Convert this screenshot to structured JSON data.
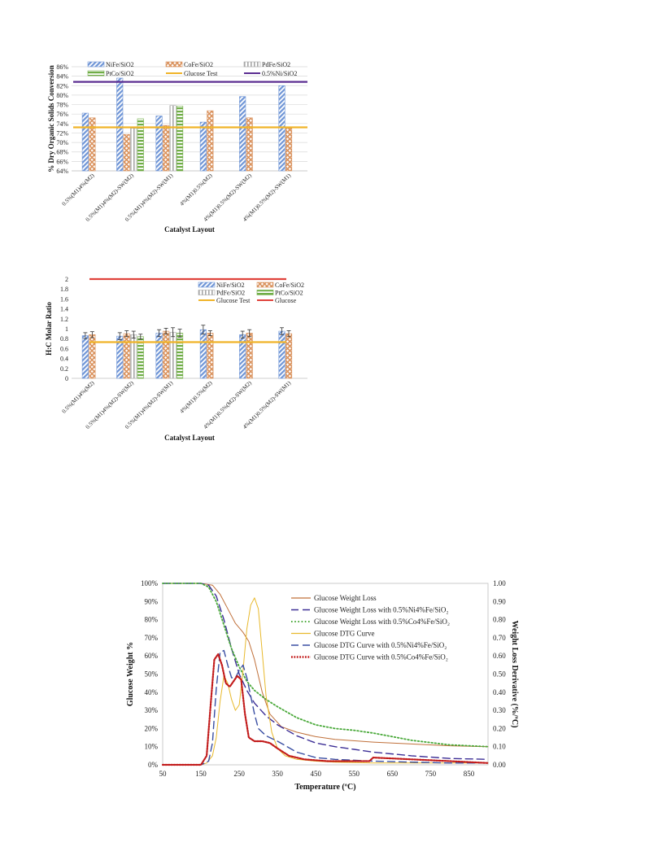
{
  "chart_data": [
    {
      "type": "bar",
      "xlabel": "Catalyst Layout",
      "ylabel": "% Dry Organic Solids Conversion",
      "ylim": [
        0.64,
        0.86
      ],
      "ytick_labels": [
        "64%",
        "66%",
        "68%",
        "70%",
        "72%",
        "74%",
        "76%",
        "78%",
        "80%",
        "82%",
        "84%",
        "86%"
      ],
      "grid": true,
      "legend_position": "top",
      "categories": [
        "0.5%(M1)4%(M2)",
        "0.5%(M1)4%(M2)-SW(M2)",
        "0.5%(M1)4%(M2)-SW(M1)",
        "4%(M1)0.5%(M2)",
        "4%(M1)0.5%(M2)-SW(M2)",
        "4%(M1)0.5%(M2)-SW(M1)"
      ],
      "series": [
        {
          "name": "NiFe/SiO2",
          "color": "#6f95d6",
          "pattern": "diag",
          "values": [
            0.762,
            0.836,
            0.756,
            0.743,
            0.797,
            0.82
          ]
        },
        {
          "name": "CoFe/SiO2",
          "color": "#d9915c",
          "pattern": "cross",
          "values": [
            0.752,
            0.717,
            0.736,
            0.767,
            0.752,
            0.73
          ]
        },
        {
          "name": "PdFe/SiO2",
          "color": "#a6a6a6",
          "pattern": "vert",
          "values": [
            null,
            0.73,
            0.778,
            null,
            null,
            null
          ]
        },
        {
          "name": "PtCo/SiO2",
          "color": "#70ad47",
          "pattern": "horiz",
          "values": [
            null,
            0.75,
            0.777,
            null,
            null,
            null
          ]
        }
      ],
      "reference_lines": [
        {
          "name": "Glucose Test",
          "color": "#f0b429",
          "value": 0.732
        },
        {
          "name": "0.5%Ni/SiO2",
          "color": "#5b2d91",
          "value": 0.828
        }
      ]
    },
    {
      "type": "bar",
      "xlabel": "Catalyst Layout",
      "ylabel": "H:C Molar Ratio",
      "ylim": [
        0,
        2
      ],
      "ytick_labels": [
        "0",
        "0.2",
        "0.4",
        "0.6",
        "0.8",
        "1",
        "1.2",
        "1.4",
        "1.6",
        "1.8",
        "2"
      ],
      "grid": false,
      "legend_position": "top-right",
      "categories": [
        "0.5%(M1)4%(M2)",
        "0.5%(M1)4%(M2)-SW(M2)",
        "0.5%(M1)4%(M2)-SW(M1)",
        "4%(M1)0.5%(M2)",
        "4%(M1)0.5%(M2)-SW(M2)",
        "4%(M1)0.5%(M2)-SW(M1)"
      ],
      "series": [
        {
          "name": "NiFe/SiO2",
          "color": "#6f95d6",
          "pattern": "diag",
          "values": [
            0.86,
            0.85,
            0.91,
            0.98,
            0.88,
            0.95
          ],
          "errors": [
            0.06,
            0.07,
            0.07,
            0.09,
            0.07,
            0.07
          ]
        },
        {
          "name": "CoFe/SiO2",
          "color": "#d9915c",
          "pattern": "cross",
          "values": [
            0.88,
            0.9,
            0.95,
            0.91,
            0.91,
            0.9
          ],
          "errors": [
            0.06,
            0.06,
            0.06,
            0.05,
            0.07,
            0.06
          ]
        },
        {
          "name": "PdFe/SiO2",
          "color": "#a6a6a6",
          "pattern": "vert",
          "values": [
            null,
            0.88,
            0.93,
            null,
            null,
            null
          ],
          "errors": [
            null,
            0.07,
            0.09,
            null,
            null,
            null
          ]
        },
        {
          "name": "PtCo/SiO2",
          "color": "#70ad47",
          "pattern": "horiz",
          "values": [
            null,
            0.84,
            0.91,
            null,
            null,
            null
          ],
          "errors": [
            null,
            0.05,
            0.08,
            null,
            null,
            null
          ]
        }
      ],
      "reference_lines": [
        {
          "name": "Glucose Test",
          "color": "#f0b429",
          "value": 0.73
        },
        {
          "name": "Glucose",
          "color": "#e0433c",
          "value": 2.0
        }
      ]
    },
    {
      "type": "line",
      "xlabel": "Temperature (ºC)",
      "ylabel": "Glucose Weight %",
      "y2label": "Weight Loss Derivative (%/ºC)",
      "xlim": [
        50,
        900
      ],
      "ylim": [
        0,
        1
      ],
      "y2lim": [
        0,
        1
      ],
      "xtick_labels": [
        "50",
        "150",
        "250",
        "350",
        "450",
        "550",
        "650",
        "750",
        "850"
      ],
      "ytick_labels": [
        "0%",
        "10%",
        "20%",
        "30%",
        "40%",
        "50%",
        "60%",
        "70%",
        "80%",
        "90%",
        "100%"
      ],
      "y2tick_labels": [
        "0.00",
        "0.10",
        "0.20",
        "0.30",
        "0.40",
        "0.50",
        "0.60",
        "0.70",
        "0.80",
        "0.90",
        "1.00"
      ],
      "grid": false,
      "legend_position": "top-right",
      "series": [
        {
          "name": "Glucose Weight Loss",
          "color": "#c0703a",
          "dash": "solid",
          "axis": "left",
          "x": [
            50,
            150,
            180,
            200,
            220,
            240,
            260,
            275,
            290,
            310,
            330,
            360,
            400,
            450,
            500,
            600,
            700,
            800,
            900
          ],
          "y": [
            1.0,
            1.0,
            0.99,
            0.94,
            0.86,
            0.78,
            0.73,
            0.68,
            0.58,
            0.4,
            0.28,
            0.21,
            0.18,
            0.155,
            0.14,
            0.125,
            0.115,
            0.105,
            0.1
          ]
        },
        {
          "name": "Glucose Weight Loss with 0.5%Ni4%Fe/SiO₂",
          "color": "#3d2f96",
          "dash": "long",
          "axis": "left",
          "x": [
            50,
            150,
            170,
            190,
            210,
            230,
            250,
            270,
            290,
            320,
            350,
            400,
            450,
            500,
            550,
            600,
            700,
            800,
            900
          ],
          "y": [
            1.0,
            1.0,
            0.99,
            0.93,
            0.8,
            0.64,
            0.5,
            0.41,
            0.34,
            0.27,
            0.22,
            0.16,
            0.12,
            0.1,
            0.085,
            0.07,
            0.05,
            0.035,
            0.03
          ]
        },
        {
          "name": "Glucose Weight Loss with 0.5%Co4%Fe/SiO₂",
          "color": "#4aa93a",
          "dash": "dot",
          "axis": "left",
          "x": [
            50,
            150,
            170,
            190,
            210,
            230,
            250,
            270,
            290,
            320,
            350,
            400,
            450,
            500,
            550,
            600,
            650,
            700,
            800,
            900
          ],
          "y": [
            1.0,
            1.0,
            0.98,
            0.9,
            0.77,
            0.64,
            0.54,
            0.46,
            0.41,
            0.36,
            0.32,
            0.26,
            0.22,
            0.2,
            0.19,
            0.175,
            0.155,
            0.135,
            0.11,
            0.1
          ]
        },
        {
          "name": "Glucose DTG Curve",
          "color": "#e8b92c",
          "dash": "solid",
          "axis": "right",
          "x": [
            50,
            150,
            165,
            180,
            190,
            200,
            210,
            220,
            230,
            240,
            250,
            260,
            270,
            280,
            290,
            300,
            310,
            320,
            335,
            350,
            370,
            400,
            450,
            500,
            600,
            700,
            800,
            900
          ],
          "y": [
            0,
            0,
            0.01,
            0.05,
            0.15,
            0.35,
            0.49,
            0.45,
            0.36,
            0.3,
            0.33,
            0.52,
            0.75,
            0.88,
            0.92,
            0.86,
            0.62,
            0.38,
            0.18,
            0.09,
            0.05,
            0.03,
            0.02,
            0.015,
            0.01,
            0.01,
            0.01,
            0.01
          ]
        },
        {
          "name": "Glucose DTG Curve with 0.5%Ni4%Fe/SiO₂",
          "color": "#3a4fa3",
          "dash": "long",
          "axis": "right",
          "x": [
            50,
            150,
            170,
            180,
            190,
            200,
            210,
            220,
            230,
            240,
            250,
            260,
            270,
            280,
            290,
            300,
            320,
            350,
            400,
            450,
            500,
            600,
            700,
            800,
            900
          ],
          "y": [
            0,
            0,
            0.02,
            0.12,
            0.42,
            0.62,
            0.63,
            0.55,
            0.48,
            0.48,
            0.52,
            0.55,
            0.48,
            0.38,
            0.28,
            0.2,
            0.16,
            0.13,
            0.07,
            0.04,
            0.03,
            0.02,
            0.015,
            0.01,
            0.01
          ]
        },
        {
          "name": "Glucose DTG Curve with 0.5%Co4%Fe/SiO₂",
          "color": "#c21b1b",
          "dash": "densedot",
          "axis": "right",
          "x": [
            50,
            150,
            165,
            175,
            185,
            195,
            205,
            215,
            225,
            235,
            245,
            255,
            265,
            275,
            290,
            310,
            330,
            350,
            380,
            420,
            480,
            550,
            590,
            600,
            650,
            700,
            800,
            900
          ],
          "y": [
            0,
            0,
            0.05,
            0.32,
            0.58,
            0.61,
            0.55,
            0.45,
            0.43,
            0.46,
            0.49,
            0.47,
            0.28,
            0.15,
            0.13,
            0.13,
            0.12,
            0.09,
            0.05,
            0.03,
            0.02,
            0.02,
            0.02,
            0.04,
            0.035,
            0.03,
            0.02,
            0.01
          ]
        }
      ]
    }
  ]
}
